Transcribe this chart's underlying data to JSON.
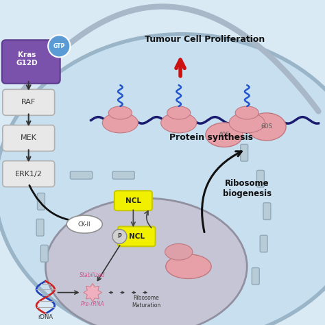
{
  "bg_color": "#daeaf5",
  "cell_bg": "#c8dff0",
  "nucleus_bg": "#c5c5d5",
  "nucleus_edge": "#a0a0b0",
  "kras_color": "#7b52ab",
  "gtp_color": "#5b9bd5",
  "box_fill": "#e8e8e8",
  "box_edge": "#b0b0b0",
  "ncl_yellow": "#f0f000",
  "ncl_edge": "#c8c800",
  "pink_blob": "#e8a0a8",
  "pink_edge": "#c07880",
  "dark_navy": "#1a1a6e",
  "red_arrow": "#cc1111",
  "arrow_color": "#222222",
  "pore_fill": "#b8ccd8",
  "pore_edge": "#90a8b8",
  "dna_blue": "#2244bb",
  "dna_red": "#cc2222",
  "pink_text": "#cc5588",
  "title_tumour": "Tumour Cell Proliferation",
  "label_protein": "Protein synthesis",
  "label_ribosome_bio": "Ribosome\nbiogenesis",
  "label_40s": "40S",
  "label_60s": "60S",
  "label_ncl": "NCL",
  "label_ckii": "CK-II",
  "label_rdna": "rDNA",
  "label_prerna": "Pre-rRNA",
  "label_stabilized": "Stabilized",
  "label_ribosome_mat": "Ribosome\nMaturation",
  "label_p": "P",
  "pathway_labels": [
    "RAF",
    "MEK",
    "ERK1/2"
  ]
}
